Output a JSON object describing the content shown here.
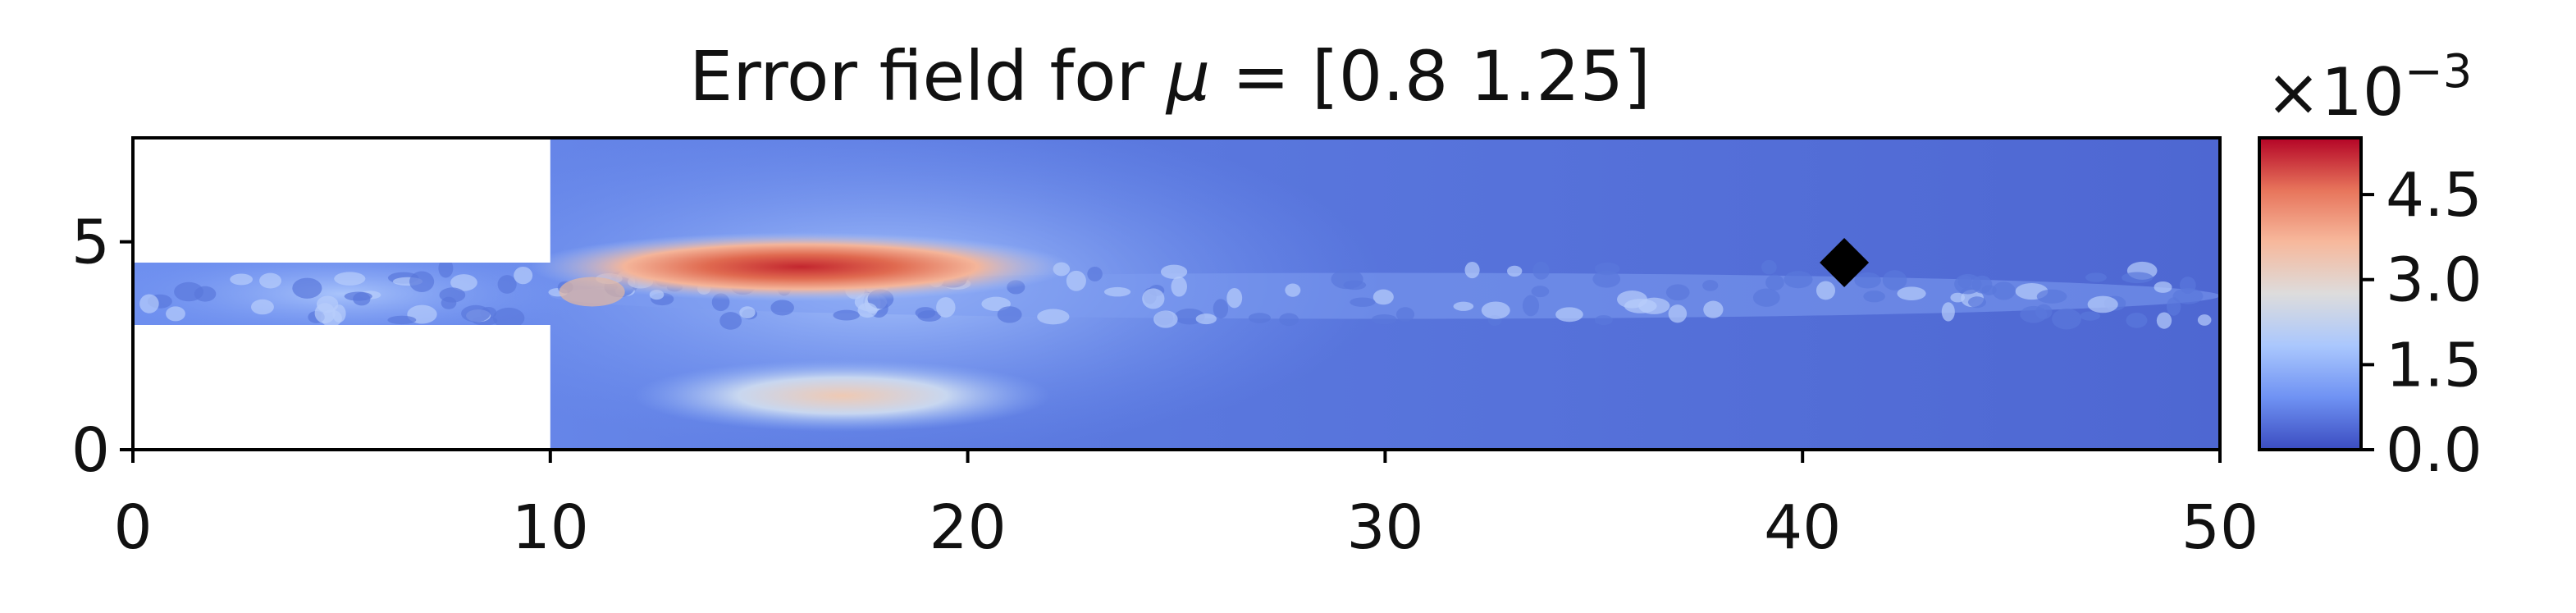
{
  "chart_data": {
    "type": "heatmap",
    "title_prefix": "Error field for ",
    "title_symbol": "μ",
    "title_suffix": " = [0.8  1.25]",
    "xlim": [
      0,
      50
    ],
    "ylim": [
      0,
      7.5
    ],
    "x_ticks": [
      0,
      10,
      20,
      30,
      40,
      50
    ],
    "y_ticks": [
      0,
      5
    ],
    "domain": {
      "inlet_channel": {
        "x": [
          0,
          10
        ],
        "y": [
          3,
          4.5
        ]
      },
      "main_chamber": {
        "x": [
          10,
          50
        ],
        "y": [
          0,
          7.5
        ]
      }
    },
    "marker": {
      "shape": "diamond",
      "x": 41,
      "y": 4.5,
      "color": "#000000"
    },
    "colorbar": {
      "range": [
        0,
        5.5
      ],
      "ticks": [
        "0.0",
        "1.5",
        "3.0",
        "4.5"
      ],
      "tick_values": [
        0.0,
        1.5,
        3.0,
        4.5
      ],
      "multiplier_base": "×10",
      "multiplier_exponent": "−3",
      "colormap": "coolwarm",
      "colors": [
        "#3b4cc0",
        "#6f92f3",
        "#aac7fd",
        "#dddcdc",
        "#f7b89c",
        "#e7745b",
        "#b40426"
      ]
    },
    "hotspots": [
      {
        "x": 16,
        "y": 4.4,
        "value": 5.3
      },
      {
        "x": 17,
        "y": 1.3,
        "value": 3.0
      },
      {
        "x": 11,
        "y": 3.8,
        "value": 2.0
      }
    ]
  }
}
